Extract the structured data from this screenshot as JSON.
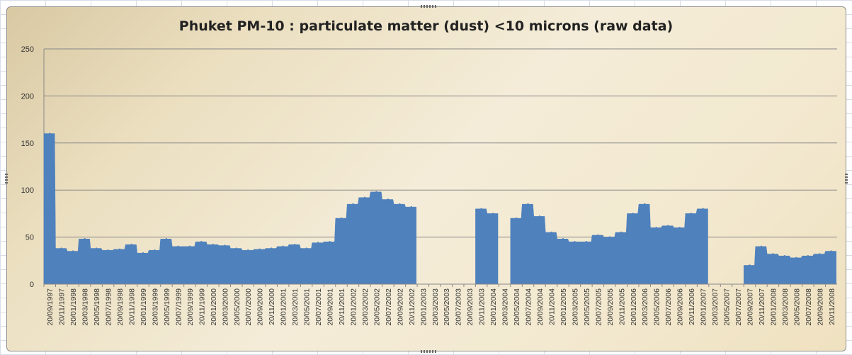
{
  "colors": {
    "area": "#4f81bd",
    "grid": "#878787"
  },
  "chart_data": {
    "type": "area",
    "title": "Phuket PM-10 : particulate matter (dust) <10 microns (raw data)",
    "ylim": [
      0,
      250
    ],
    "yticks": [
      "0",
      "50",
      "100",
      "150",
      "200",
      "250"
    ],
    "grid": true,
    "legend": "none",
    "x_tick_labels": [
      "20/09/1997",
      "20/11/1997",
      "20/01/1998",
      "20/03/1998",
      "20/05/1998",
      "20/07/1998",
      "20/09/1998",
      "20/11/1998",
      "20/01/1999",
      "20/03/1999",
      "20/05/1999",
      "20/07/1999",
      "20/09/1999",
      "20/11/1999",
      "20/01/2000",
      "20/03/2000",
      "20/05/2000",
      "20/07/2000",
      "20/09/2000",
      "20/11/2000",
      "20/01/2001",
      "20/03/2001",
      "20/05/2001",
      "20/07/2001",
      "20/09/2001",
      "20/11/2001",
      "20/01/2002",
      "20/03/2002",
      "20/05/2002",
      "20/07/2002",
      "20/09/2002",
      "20/11/2002",
      "20/01/2003",
      "20/03/2003",
      "20/05/2003",
      "20/07/2003",
      "20/09/2003",
      "20/11/2003",
      "20/01/2004",
      "20/03/2004",
      "20/05/2004",
      "20/07/2004",
      "20/09/2004",
      "20/11/2004",
      "20/01/2005",
      "20/03/2005",
      "20/05/2005",
      "20/07/2005",
      "20/09/2005",
      "20/11/2005",
      "20/01/2006",
      "20/03/2006",
      "20/05/2006",
      "20/07/2006",
      "20/09/2006",
      "20/11/2006",
      "20/01/2007",
      "20/03/2007",
      "20/05/2007",
      "20/07/2007",
      "20/09/2007",
      "20/11/2007",
      "20/01/2008",
      "20/03/2008",
      "20/05/2008",
      "20/07/2008",
      "20/09/2008",
      "20/11/2008"
    ],
    "series": [
      {
        "x": [
          "20/09/1997",
          "20/11/1997",
          "20/01/1998",
          "20/03/1998",
          "20/05/1998",
          "20/07/1998",
          "20/09/1998",
          "20/11/1998",
          "20/01/1999",
          "20/03/1999",
          "20/05/1999",
          "20/07/1999",
          "20/09/1999",
          "20/11/1999",
          "20/01/2000",
          "20/03/2000",
          "20/05/2000",
          "20/07/2000",
          "20/09/2000",
          "20/11/2000",
          "20/01/2001",
          "20/03/2001",
          "20/05/2001",
          "20/07/2001",
          "20/09/2001",
          "20/11/2001",
          "20/01/2002",
          "20/03/2002",
          "20/05/2002",
          "20/07/2002",
          "20/09/2002",
          "20/11/2002",
          "20/01/2003",
          "20/03/2003",
          "20/05/2003",
          "20/07/2003",
          "20/09/2003",
          "20/11/2003",
          "20/01/2004",
          "20/03/2004",
          "20/05/2004",
          "20/07/2004",
          "20/09/2004",
          "20/11/2004",
          "20/01/2005",
          "20/03/2005",
          "20/05/2005",
          "20/07/2005",
          "20/09/2005",
          "20/11/2005",
          "20/01/2006",
          "20/03/2006",
          "20/05/2006",
          "20/07/2006",
          "20/09/2006",
          "20/11/2006",
          "20/01/2007",
          "20/03/2007",
          "20/05/2007",
          "20/07/2007",
          "20/09/2007",
          "20/11/2007",
          "20/01/2008",
          "20/03/2008",
          "20/05/2008",
          "20/07/2008",
          "20/09/2008",
          "20/11/2008"
        ],
        "values": [
          160,
          38,
          35,
          48,
          38,
          36,
          37,
          42,
          33,
          36,
          48,
          40,
          40,
          45,
          42,
          41,
          38,
          36,
          37,
          38,
          40,
          42,
          38,
          44,
          45,
          70,
          85,
          92,
          98,
          90,
          85,
          82,
          null,
          null,
          null,
          null,
          null,
          80,
          75,
          null,
          70,
          85,
          72,
          55,
          48,
          45,
          45,
          52,
          50,
          55,
          75,
          85,
          60,
          62,
          60,
          75,
          80,
          null,
          null,
          null,
          20,
          40,
          32,
          30,
          28,
          30,
          32,
          35
        ]
      }
    ]
  }
}
